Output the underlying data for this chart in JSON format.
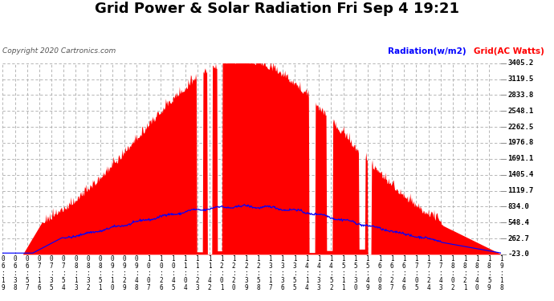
{
  "title": "Grid Power & Solar Radiation Fri Sep 4 19:21",
  "copyright": "Copyright 2020 Cartronics.com",
  "legend_radiation": "Radiation(w/m2)",
  "legend_grid": "Grid(AC Watts)",
  "yticks": [
    -23.0,
    262.7,
    548.4,
    834.0,
    1119.7,
    1405.4,
    1691.1,
    1976.8,
    2262.5,
    2548.1,
    2833.8,
    3119.5,
    3405.2
  ],
  "ymin": -23.0,
  "ymax": 3405.2,
  "radiation_color": "#0000ff",
  "grid_power_color": "#ff0000",
  "grid_line_color": "#aaaaaa",
  "bg_color": "#ffffff",
  "x_labels": [
    "06:19",
    "06:38",
    "06:57",
    "07:16",
    "07:35",
    "07:54",
    "08:13",
    "08:32",
    "08:51",
    "09:10",
    "09:29",
    "09:48",
    "10:07",
    "10:26",
    "10:45",
    "11:04",
    "11:23",
    "11:42",
    "12:01",
    "12:20",
    "12:39",
    "12:58",
    "13:17",
    "13:36",
    "13:55",
    "14:14",
    "14:33",
    "14:52",
    "15:11",
    "15:30",
    "15:49",
    "16:08",
    "16:27",
    "16:46",
    "17:05",
    "17:24",
    "17:43",
    "18:02",
    "18:21",
    "18:40",
    "18:59",
    "19:18"
  ],
  "n_points": 800,
  "radiation_max": 834.0,
  "grid_max": 3405.2,
  "title_fontsize": 13,
  "copyright_fontsize": 6.5,
  "legend_fontsize": 7.5,
  "tick_label_fontsize": 6.5,
  "xlabel_fontsize": 5.5
}
